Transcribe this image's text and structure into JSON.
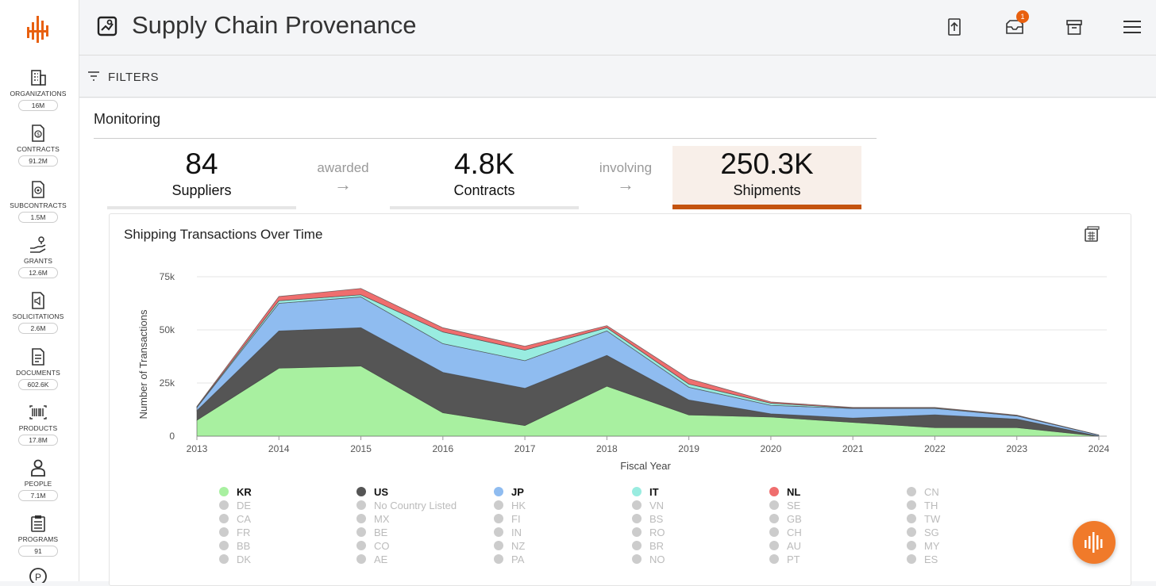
{
  "app": {
    "title": "Supply Chain Provenance",
    "notification_count": "1",
    "accent_color": "#e8600f"
  },
  "sidebar": {
    "items": [
      {
        "label": "ORGANIZATIONS",
        "count": "16M",
        "icon": "building-icon"
      },
      {
        "label": "CONTRACTS",
        "count": "91.2M",
        "icon": "contract-dollar-icon"
      },
      {
        "label": "SUBCONTRACTS",
        "count": "1.5M",
        "icon": "subcontract-icon"
      },
      {
        "label": "GRANTS",
        "count": "12.6M",
        "icon": "hand-pin-icon"
      },
      {
        "label": "SOLICITATIONS",
        "count": "2.6M",
        "icon": "megaphone-doc-icon"
      },
      {
        "label": "DOCUMENTS",
        "count": "602.6K",
        "icon": "document-icon"
      },
      {
        "label": "PRODUCTS",
        "count": "17.8M",
        "icon": "barcode-icon"
      },
      {
        "label": "PEOPLE",
        "count": "7.1M",
        "icon": "person-icon"
      },
      {
        "label": "PROGRAMS",
        "count": "91",
        "icon": "clipboard-icon"
      }
    ]
  },
  "filters": {
    "label": "FILTERS"
  },
  "monitoring": {
    "title": "Monitoring",
    "stats": [
      {
        "value": "84",
        "label": "Suppliers"
      },
      {
        "value": "4.8K",
        "label": "Contracts"
      },
      {
        "value": "250.3K",
        "label": "Shipments"
      }
    ],
    "connectors": [
      "awarded",
      "involving"
    ]
  },
  "chart": {
    "title": "Shipping Transactions Over Time"
  },
  "chart_data": {
    "type": "area",
    "stacked": true,
    "title": "Shipping Transactions Over Time",
    "xlabel": "Fiscal Year",
    "ylabel": "Number of Transactions",
    "x": [
      2013,
      2014,
      2015,
      2016,
      2017,
      2018,
      2019,
      2020,
      2021,
      2022,
      2023,
      2024
    ],
    "ylim": [
      0,
      75000
    ],
    "yticks": [
      "0",
      "25k",
      "50k",
      "75k"
    ],
    "series": [
      {
        "name": "KR",
        "color": "#a8f0a0",
        "values": [
          7500,
          32000,
          33000,
          11000,
          5000,
          23500,
          10000,
          9000,
          6500,
          4000,
          4000,
          0
        ]
      },
      {
        "name": "US",
        "color": "#555555",
        "values": [
          4500,
          17500,
          18000,
          19000,
          17500,
          14500,
          7000,
          1500,
          2000,
          6000,
          4000,
          0
        ]
      },
      {
        "name": "JP",
        "color": "#8fbcf0",
        "values": [
          1500,
          13000,
          14500,
          13500,
          13000,
          11500,
          6000,
          4000,
          4500,
          3000,
          1500,
          500
        ]
      },
      {
        "name": "IT",
        "color": "#99ece0",
        "values": [
          300,
          1200,
          1000,
          5500,
          5000,
          1500,
          1500,
          1000,
          200,
          300,
          200,
          0
        ]
      },
      {
        "name": "NL",
        "color": "#ef6e6e",
        "values": [
          200,
          2000,
          3000,
          2000,
          1800,
          1000,
          2500,
          600,
          300,
          200,
          200,
          0
        ]
      }
    ],
    "legend_active": [
      "KR",
      "US",
      "JP",
      "IT",
      "NL"
    ],
    "legend_inactive_rows": [
      [
        "DE",
        "No Country Listed",
        "HK",
        "VN",
        "SE",
        "TH"
      ],
      [
        "CA",
        "MX",
        "FI",
        "BS",
        "GB",
        "TW"
      ],
      [
        "FR",
        "BE",
        "IN",
        "RO",
        "CH",
        "SG"
      ],
      [
        "BB",
        "CO",
        "NZ",
        "BR",
        "AU",
        "MY"
      ],
      [
        "DK",
        "AE",
        "PA",
        "NO",
        "PT",
        "ES"
      ]
    ],
    "legend_first_row_extra": "CN",
    "inactive_color": "#cccccc"
  }
}
